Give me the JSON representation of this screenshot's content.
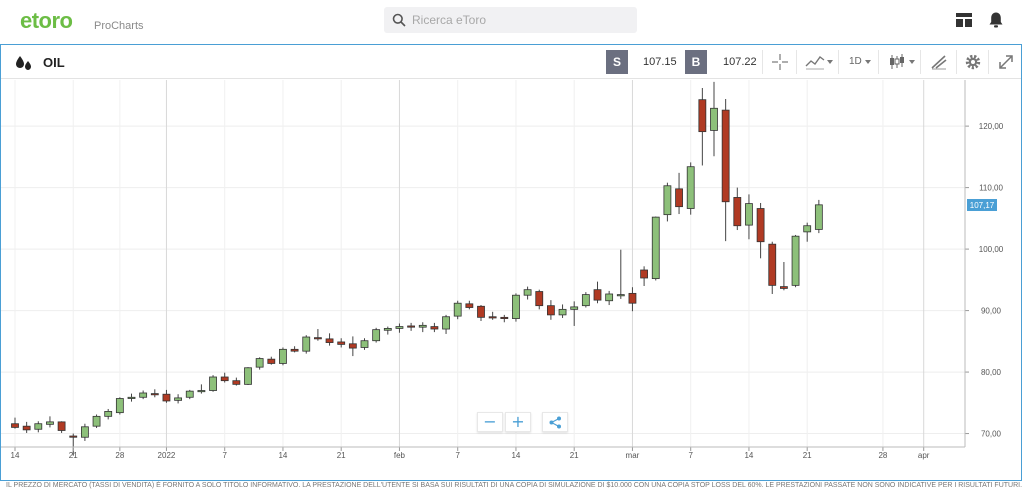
{
  "header": {
    "logo_text": "etoro",
    "logo_sub": "ProCharts",
    "search_placeholder": "Ricerca eToro"
  },
  "toolbar": {
    "asset": "OIL",
    "sell_tag": "S",
    "sell_price": "107.15",
    "buy_tag": "B",
    "buy_price": "107.22",
    "timeframe": "1D"
  },
  "colors": {
    "accent": "#4a9fd5",
    "brand": "#6cbd45",
    "up": "#8dc07a",
    "down": "#b03a23",
    "price_tag": "#4a9fd5"
  },
  "icons": [
    "search-icon",
    "layout-icon",
    "bell-icon",
    "oil-drop-icon",
    "crosshair-icon",
    "chart-type-icon",
    "candles-icon",
    "draw-icon",
    "gear-icon",
    "fullscreen-icon",
    "share-icon"
  ],
  "chart_data": {
    "type": "candlestick",
    "current_price_label": "107,17",
    "current_price": 107.17,
    "y_ticks": [
      "70,00",
      "80,00",
      "90,00",
      "100,00",
      "110,00",
      "120,00"
    ],
    "y_tick_values": [
      70,
      80,
      90,
      100,
      110,
      120
    ],
    "ylim": [
      65.7,
      127.5
    ],
    "x_ticks": [
      "14",
      "21",
      "28",
      "2022",
      "7",
      "14",
      "21",
      "feb",
      "7",
      "14",
      "21",
      "mar",
      "7",
      "14",
      "21",
      "28",
      "apr"
    ],
    "x_tick_index": [
      0,
      5,
      9,
      13,
      18,
      23,
      28,
      33,
      38,
      43,
      48,
      53,
      58,
      63,
      68,
      74.5,
      78
    ],
    "grid": true,
    "candles": [
      {
        "o": 71.6,
        "h": 72.6,
        "l": 70.8,
        "c": 71.0
      },
      {
        "o": 71.2,
        "h": 71.9,
        "l": 70.1,
        "c": 70.6
      },
      {
        "o": 70.7,
        "h": 72.0,
        "l": 70.2,
        "c": 71.6
      },
      {
        "o": 71.5,
        "h": 72.8,
        "l": 71.0,
        "c": 71.9
      },
      {
        "o": 71.9,
        "h": 72.0,
        "l": 70.1,
        "c": 70.5
      },
      {
        "o": 69.6,
        "h": 70.0,
        "l": 66.4,
        "c": 69.4
      },
      {
        "o": 69.4,
        "h": 71.6,
        "l": 68.8,
        "c": 71.1
      },
      {
        "o": 71.2,
        "h": 73.1,
        "l": 70.9,
        "c": 72.8
      },
      {
        "o": 72.8,
        "h": 74.0,
        "l": 72.3,
        "c": 73.6
      },
      {
        "o": 73.4,
        "h": 75.9,
        "l": 73.1,
        "c": 75.7
      },
      {
        "o": 75.7,
        "h": 76.5,
        "l": 75.2,
        "c": 75.9
      },
      {
        "o": 75.9,
        "h": 77.0,
        "l": 75.6,
        "c": 76.6
      },
      {
        "o": 76.5,
        "h": 77.2,
        "l": 75.9,
        "c": 76.3
      },
      {
        "o": 76.4,
        "h": 77.1,
        "l": 75.0,
        "c": 75.3
      },
      {
        "o": 75.4,
        "h": 76.4,
        "l": 74.9,
        "c": 75.8
      },
      {
        "o": 75.9,
        "h": 77.1,
        "l": 75.6,
        "c": 76.9
      },
      {
        "o": 76.9,
        "h": 78.0,
        "l": 76.5,
        "c": 77.0
      },
      {
        "o": 77.0,
        "h": 79.5,
        "l": 76.8,
        "c": 79.2
      },
      {
        "o": 79.2,
        "h": 79.9,
        "l": 78.3,
        "c": 78.6
      },
      {
        "o": 78.6,
        "h": 79.1,
        "l": 77.8,
        "c": 78.0
      },
      {
        "o": 78.0,
        "h": 80.8,
        "l": 77.9,
        "c": 80.7
      },
      {
        "o": 80.8,
        "h": 82.4,
        "l": 80.4,
        "c": 82.2
      },
      {
        "o": 82.1,
        "h": 82.5,
        "l": 81.2,
        "c": 81.4
      },
      {
        "o": 81.4,
        "h": 84.0,
        "l": 81.1,
        "c": 83.7
      },
      {
        "o": 83.7,
        "h": 84.2,
        "l": 83.2,
        "c": 83.4
      },
      {
        "o": 83.4,
        "h": 86.0,
        "l": 83.0,
        "c": 85.7
      },
      {
        "o": 85.6,
        "h": 87.0,
        "l": 85.1,
        "c": 85.4
      },
      {
        "o": 85.4,
        "h": 86.3,
        "l": 84.3,
        "c": 84.8
      },
      {
        "o": 84.9,
        "h": 85.5,
        "l": 84.0,
        "c": 84.5
      },
      {
        "o": 84.6,
        "h": 85.8,
        "l": 82.6,
        "c": 83.9
      },
      {
        "o": 84.0,
        "h": 85.5,
        "l": 83.6,
        "c": 85.1
      },
      {
        "o": 85.1,
        "h": 87.2,
        "l": 84.8,
        "c": 86.9
      },
      {
        "o": 86.8,
        "h": 87.4,
        "l": 86.1,
        "c": 87.1
      },
      {
        "o": 87.1,
        "h": 87.9,
        "l": 86.4,
        "c": 87.4
      },
      {
        "o": 87.5,
        "h": 88.0,
        "l": 86.7,
        "c": 87.3
      },
      {
        "o": 87.3,
        "h": 88.1,
        "l": 86.5,
        "c": 87.6
      },
      {
        "o": 87.4,
        "h": 88.0,
        "l": 86.5,
        "c": 87.0
      },
      {
        "o": 87.0,
        "h": 89.3,
        "l": 86.2,
        "c": 89.0
      },
      {
        "o": 89.1,
        "h": 91.6,
        "l": 88.6,
        "c": 91.2
      },
      {
        "o": 91.1,
        "h": 91.6,
        "l": 90.2,
        "c": 90.5
      },
      {
        "o": 90.7,
        "h": 90.9,
        "l": 88.3,
        "c": 88.9
      },
      {
        "o": 89.0,
        "h": 89.8,
        "l": 88.5,
        "c": 88.8
      },
      {
        "o": 88.9,
        "h": 89.3,
        "l": 88.1,
        "c": 88.7
      },
      {
        "o": 88.7,
        "h": 92.8,
        "l": 88.2,
        "c": 92.5
      },
      {
        "o": 92.5,
        "h": 93.9,
        "l": 91.8,
        "c": 93.4
      },
      {
        "o": 93.1,
        "h": 93.4,
        "l": 90.2,
        "c": 90.8
      },
      {
        "o": 90.8,
        "h": 91.7,
        "l": 88.5,
        "c": 89.3
      },
      {
        "o": 89.3,
        "h": 91.0,
        "l": 88.8,
        "c": 90.2
      },
      {
        "o": 90.2,
        "h": 91.5,
        "l": 87.5,
        "c": 90.6
      },
      {
        "o": 90.8,
        "h": 93.0,
        "l": 90.5,
        "c": 92.6
      },
      {
        "o": 93.4,
        "h": 94.7,
        "l": 91.2,
        "c": 91.7
      },
      {
        "o": 91.6,
        "h": 93.2,
        "l": 90.9,
        "c": 92.7
      },
      {
        "o": 92.4,
        "h": 99.9,
        "l": 91.9,
        "c": 92.6
      },
      {
        "o": 92.8,
        "h": 93.8,
        "l": 89.9,
        "c": 91.2
      },
      {
        "o": 96.6,
        "h": 97.2,
        "l": 94.0,
        "c": 95.3
      },
      {
        "o": 95.2,
        "h": 105.3,
        "l": 94.9,
        "c": 105.2
      },
      {
        "o": 105.6,
        "h": 110.8,
        "l": 104.5,
        "c": 110.3
      },
      {
        "o": 109.8,
        "h": 112.4,
        "l": 105.7,
        "c": 106.9
      },
      {
        "o": 106.6,
        "h": 114.1,
        "l": 105.6,
        "c": 113.4
      },
      {
        "o": 124.3,
        "h": 126.2,
        "l": 113.6,
        "c": 119.1
      },
      {
        "o": 119.3,
        "h": 127.2,
        "l": 115.1,
        "c": 122.9
      },
      {
        "o": 122.6,
        "h": 124.4,
        "l": 101.3,
        "c": 107.7
      },
      {
        "o": 108.4,
        "h": 110.0,
        "l": 103.1,
        "c": 103.8
      },
      {
        "o": 103.9,
        "h": 108.9,
        "l": 101.6,
        "c": 107.4
      },
      {
        "o": 106.6,
        "h": 107.5,
        "l": 98.5,
        "c": 101.2
      },
      {
        "o": 100.8,
        "h": 101.2,
        "l": 92.7,
        "c": 94.1
      },
      {
        "o": 93.9,
        "h": 97.9,
        "l": 93.3,
        "c": 93.6
      },
      {
        "o": 94.1,
        "h": 102.3,
        "l": 93.8,
        "c": 102.1
      },
      {
        "o": 102.8,
        "h": 104.3,
        "l": 101.2,
        "c": 103.8
      },
      {
        "o": 103.2,
        "h": 108.0,
        "l": 102.6,
        "c": 107.2
      }
    ]
  },
  "footer_text": "IL PREZZO DI MERCATO (TASSI DI VENDITA) È FORNITO A SOLO TITOLO INFORMATIVO. LA PRESTAZIONE DELL'UTENTE SI BASA SUI RISULTATI DI UNA COPIA DI SIMULAZIONE DI $10.000 CON UNA COPIA STOP LOSS DEL 60%. LE PRESTAZIONI PASSATE NON SONO INDICATIVE PER I RISULTATI FUTURI."
}
